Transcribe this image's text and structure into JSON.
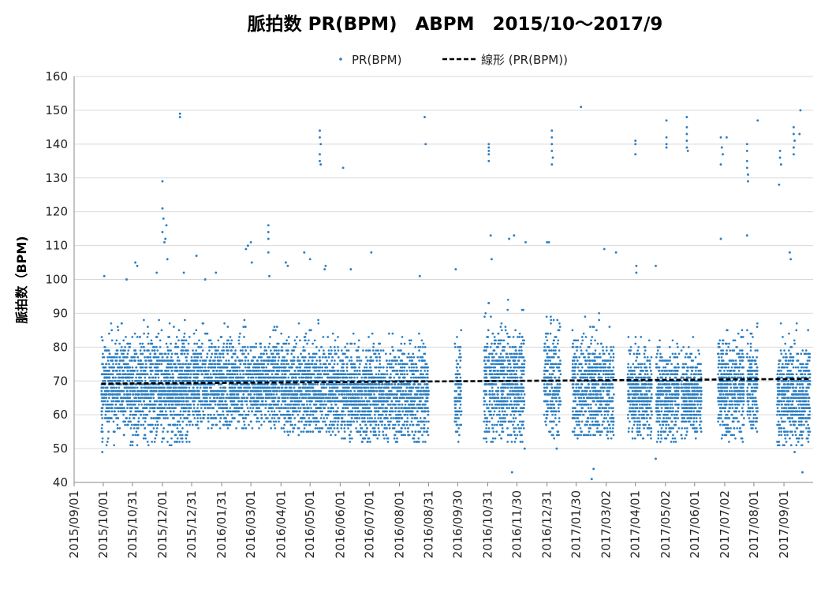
{
  "chart_data": {
    "type": "scatter",
    "title": "脈拍数 PR(BPM)　ABPM　2015/10～2017/9",
    "xlabel": "",
    "ylabel": "脈拍数（BPM)",
    "ylim": [
      40,
      160
    ],
    "yticks": [
      40,
      50,
      60,
      70,
      80,
      90,
      100,
      110,
      120,
      130,
      140,
      150,
      160
    ],
    "xlim": [
      "2015-09-01",
      "2017-10-01"
    ],
    "xticks": [
      "2015/09/01",
      "2015/10/01",
      "2015/10/31",
      "2015/12/01",
      "2015/12/31",
      "2016/01/31",
      "2016/03/01",
      "2016/04/01",
      "2016/05/01",
      "2016/06/01",
      "2016/07/01",
      "2016/08/01",
      "2016/08/31",
      "2016/09/30",
      "2016/10/31",
      "2016/11/30",
      "2016/12/31",
      "2017/01/30",
      "2017/03/02",
      "2017/04/01",
      "2017/05/02",
      "2017/06/01",
      "2017/07/02",
      "2017/08/01",
      "2017/09/01"
    ],
    "grid": "horizontal",
    "legend": "top",
    "marker_color": "#2a7ec3",
    "trend_color": "#000000",
    "series": [
      {
        "name": "PR(BPM)",
        "kind": "points",
        "clusters": [
          {
            "from": "2015-09-29",
            "to": "2015-12-31",
            "center": 68,
            "low": 51,
            "high": 88
          },
          {
            "from": "2016-01-01",
            "to": "2016-03-31",
            "center": 69,
            "low": 56,
            "high": 89
          },
          {
            "from": "2016-04-01",
            "to": "2016-05-31",
            "center": 68,
            "low": 54,
            "high": 88
          },
          {
            "from": "2016-06-01",
            "to": "2016-08-31",
            "center": 66,
            "low": 52,
            "high": 86
          },
          {
            "from": "2016-09-27",
            "to": "2016-10-04",
            "center": 68,
            "low": 52,
            "high": 88
          },
          {
            "from": "2016-10-27",
            "to": "2016-12-08",
            "center": 69,
            "low": 52,
            "high": 95
          },
          {
            "from": "2016-12-28",
            "to": "2017-01-14",
            "center": 70,
            "low": 53,
            "high": 95
          },
          {
            "from": "2017-01-26",
            "to": "2017-03-10",
            "center": 68,
            "low": 53,
            "high": 90
          },
          {
            "from": "2017-03-24",
            "to": "2017-04-18",
            "center": 66,
            "low": 53,
            "high": 84
          },
          {
            "from": "2017-04-22",
            "to": "2017-05-16",
            "center": 66,
            "low": 52,
            "high": 84
          },
          {
            "from": "2017-05-18",
            "to": "2017-06-08",
            "center": 66,
            "low": 53,
            "high": 85
          },
          {
            "from": "2017-06-25",
            "to": "2017-07-22",
            "center": 68,
            "low": 51,
            "high": 86
          },
          {
            "from": "2017-07-25",
            "to": "2017-08-05",
            "center": 69,
            "low": 54,
            "high": 90
          },
          {
            "from": "2017-08-25",
            "to": "2017-09-28",
            "center": 66,
            "low": 51,
            "high": 88
          }
        ],
        "outliers": [
          [
            "2015-10-02",
            101
          ],
          [
            "2015-10-25",
            100
          ],
          [
            "2015-11-03",
            105
          ],
          [
            "2015-11-05",
            104
          ],
          [
            "2015-11-25",
            102
          ],
          [
            "2015-12-01",
            129
          ],
          [
            "2015-12-01",
            121
          ],
          [
            "2015-12-02",
            118
          ],
          [
            "2015-12-01",
            114
          ],
          [
            "2015-12-03",
            111
          ],
          [
            "2015-12-05",
            116
          ],
          [
            "2015-12-04",
            112
          ],
          [
            "2015-12-06",
            106
          ],
          [
            "2015-12-19",
            149
          ],
          [
            "2015-12-19",
            148
          ],
          [
            "2015-12-23",
            102
          ],
          [
            "2016-01-05",
            107
          ],
          [
            "2016-01-14",
            100
          ],
          [
            "2016-01-25",
            102
          ],
          [
            "2016-02-25",
            109
          ],
          [
            "2016-02-27",
            110
          ],
          [
            "2016-03-01",
            111
          ],
          [
            "2016-03-02",
            105
          ],
          [
            "2016-03-19",
            116
          ],
          [
            "2016-03-19",
            114
          ],
          [
            "2016-03-19",
            112
          ],
          [
            "2016-03-19",
            108
          ],
          [
            "2016-03-20",
            101
          ],
          [
            "2016-04-06",
            105
          ],
          [
            "2016-04-08",
            104
          ],
          [
            "2016-04-25",
            108
          ],
          [
            "2016-05-01",
            106
          ],
          [
            "2016-05-11",
            144
          ],
          [
            "2016-05-11",
            142
          ],
          [
            "2016-05-12",
            140
          ],
          [
            "2016-05-11",
            137
          ],
          [
            "2016-05-11",
            135
          ],
          [
            "2016-05-12",
            134
          ],
          [
            "2016-05-16",
            103
          ],
          [
            "2016-05-17",
            104
          ],
          [
            "2016-06-04",
            133
          ],
          [
            "2016-06-12",
            103
          ],
          [
            "2016-07-03",
            108
          ],
          [
            "2016-08-22",
            101
          ],
          [
            "2016-08-27",
            148
          ],
          [
            "2016-08-28",
            140
          ],
          [
            "2016-09-28",
            103
          ],
          [
            "2016-11-01",
            140
          ],
          [
            "2016-11-01",
            139
          ],
          [
            "2016-11-01",
            138
          ],
          [
            "2016-11-01",
            137
          ],
          [
            "2016-11-01",
            135
          ],
          [
            "2016-11-03",
            113
          ],
          [
            "2016-11-04",
            106
          ],
          [
            "2016-11-22",
            112
          ],
          [
            "2016-11-27",
            113
          ],
          [
            "2016-12-09",
            111
          ],
          [
            "2016-12-31",
            111
          ],
          [
            "2017-01-02",
            111
          ],
          [
            "2017-01-05",
            144
          ],
          [
            "2017-01-05",
            142
          ],
          [
            "2017-01-05",
            140
          ],
          [
            "2017-01-05",
            138
          ],
          [
            "2017-01-06",
            136
          ],
          [
            "2017-01-05",
            134
          ],
          [
            "2017-02-04",
            151
          ],
          [
            "2017-02-15",
            41
          ],
          [
            "2017-02-17",
            44
          ],
          [
            "2017-02-28",
            109
          ],
          [
            "2017-03-12",
            108
          ],
          [
            "2017-04-01",
            141
          ],
          [
            "2017-04-01",
            140
          ],
          [
            "2017-04-01",
            137
          ],
          [
            "2017-04-02",
            102
          ],
          [
            "2017-04-02",
            104
          ],
          [
            "2017-04-22",
            104
          ],
          [
            "2017-04-22",
            47
          ],
          [
            "2017-05-03",
            147
          ],
          [
            "2017-05-03",
            142
          ],
          [
            "2017-05-03",
            140
          ],
          [
            "2017-05-03",
            139
          ],
          [
            "2017-05-24",
            148
          ],
          [
            "2017-05-24",
            145
          ],
          [
            "2017-05-24",
            143
          ],
          [
            "2017-05-24",
            141
          ],
          [
            "2017-05-24",
            139
          ],
          [
            "2017-05-25",
            138
          ],
          [
            "2017-06-28",
            142
          ],
          [
            "2017-06-29",
            139
          ],
          [
            "2017-06-30",
            137
          ],
          [
            "2017-06-28",
            134
          ],
          [
            "2017-07-04",
            142
          ],
          [
            "2017-06-28",
            112
          ],
          [
            "2017-07-25",
            140
          ],
          [
            "2017-07-25",
            138
          ],
          [
            "2017-07-25",
            135
          ],
          [
            "2017-07-25",
            133
          ],
          [
            "2017-07-26",
            131
          ],
          [
            "2017-07-26",
            129
          ],
          [
            "2017-07-25",
            113
          ],
          [
            "2017-08-05",
            147
          ],
          [
            "2017-08-28",
            138
          ],
          [
            "2017-08-28",
            136
          ],
          [
            "2017-08-29",
            134
          ],
          [
            "2017-08-27",
            128
          ],
          [
            "2017-09-11",
            145
          ],
          [
            "2017-09-11",
            143
          ],
          [
            "2017-09-12",
            141
          ],
          [
            "2017-09-11",
            139
          ],
          [
            "2017-09-11",
            137
          ],
          [
            "2017-09-18",
            150
          ],
          [
            "2017-09-17",
            143
          ],
          [
            "2017-09-07",
            108
          ],
          [
            "2017-09-08",
            106
          ],
          [
            "2017-09-12",
            49
          ],
          [
            "2017-09-20",
            43
          ],
          [
            "2016-11-25",
            43
          ],
          [
            "2016-12-08",
            50
          ],
          [
            "2017-01-10",
            50
          ],
          [
            "2015-09-30",
            49
          ]
        ]
      },
      {
        "name": "線形 (PR(BPM))",
        "kind": "trendline",
        "x": [
          "2015-09-29",
          "2017-09-28"
        ],
        "y": [
          69.2,
          70.6
        ]
      }
    ]
  }
}
